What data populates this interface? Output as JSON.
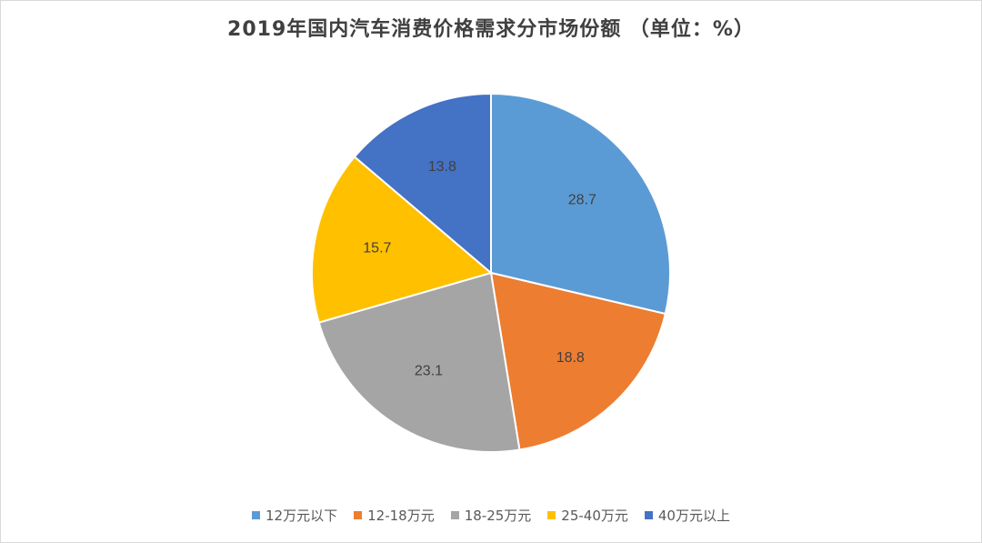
{
  "chart_data": {
    "type": "pie",
    "title": "2019年国内汽车消费价格需求分市场份额 （单位：%）",
    "unit": "%",
    "categories": [
      "12万元以下",
      "12-18万元",
      "18-25万元",
      "25-40万元",
      "40万元以上"
    ],
    "values": [
      28.7,
      18.8,
      23.1,
      15.7,
      13.8
    ],
    "colors": [
      "#5b9bd5",
      "#ed7d31",
      "#a5a5a5",
      "#ffc000",
      "#4472c4"
    ],
    "start_angle_deg": 0,
    "direction": "clockwise",
    "legend_position": "bottom"
  },
  "colors": {
    "label_text": "#404040",
    "slice_border": "#ffffff"
  }
}
